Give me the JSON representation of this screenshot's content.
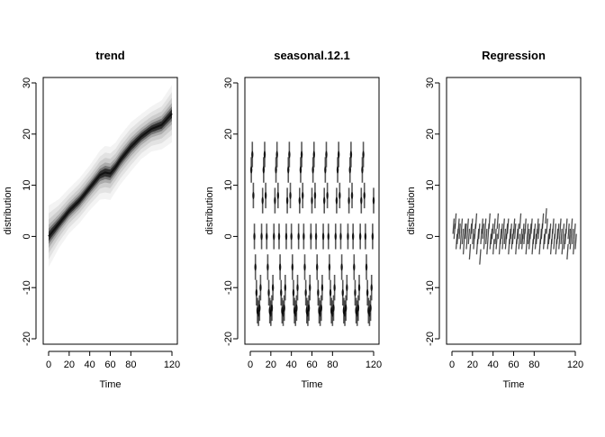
{
  "chart_data": [
    {
      "type": "area",
      "title": "trend",
      "xlabel": "Time",
      "ylabel": "distribution",
      "xlim": [
        0,
        120
      ],
      "ylim": [
        -20,
        30
      ],
      "xticks": [
        0,
        20,
        40,
        60,
        80,
        120
      ],
      "yticks": [
        -20,
        -10,
        0,
        10,
        20,
        30
      ],
      "grid": false,
      "series": [
        {
          "x": [
            0,
            10,
            20,
            30,
            40,
            50,
            55,
            60,
            65,
            70,
            80,
            90,
            100,
            110,
            120
          ],
          "center": [
            0,
            2.5,
            5,
            7,
            9.5,
            12,
            12.5,
            12.3,
            13.5,
            15,
            17.5,
            19.5,
            21,
            21.8,
            24
          ],
          "spread": [
            1.5,
            1.2,
            1.1,
            1.1,
            1.1,
            1.2,
            1.3,
            1.3,
            1.2,
            1.2,
            1.2,
            1.1,
            1.1,
            1.2,
            1.4
          ]
        }
      ]
    },
    {
      "type": "scatter",
      "title": "seasonal.12.1",
      "xlabel": "Time",
      "ylabel": "distribution",
      "xlim": [
        0,
        120
      ],
      "ylim": [
        -20,
        30
      ],
      "xticks": [
        0,
        20,
        40,
        60,
        80,
        120
      ],
      "yticks": [
        -20,
        -10,
        0,
        10,
        20,
        30
      ],
      "grid": false,
      "series": [
        {
          "period": 12,
          "cycles": 10,
          "pattern": [
            13,
            16,
            8,
            0,
            -6,
            -11,
            -14.5,
            -15,
            -14,
            -10,
            0,
            7
          ],
          "spread": 2.5
        }
      ]
    },
    {
      "type": "scatter",
      "title": "Regression",
      "xlabel": "Time",
      "ylabel": "distribution",
      "xlim": [
        0,
        120
      ],
      "ylim": [
        -20,
        30
      ],
      "xticks": [
        0,
        20,
        40,
        60,
        80,
        120
      ],
      "yticks": [
        -20,
        -10,
        0,
        10,
        20,
        30
      ],
      "grid": false,
      "series": [
        {
          "x": [
            1,
            2,
            3,
            4,
            5,
            6,
            7,
            8,
            9,
            10,
            11,
            12,
            13,
            14,
            15,
            16,
            17,
            18,
            19,
            20,
            21,
            22,
            23,
            24,
            25,
            26,
            27,
            28,
            29,
            30,
            31,
            32,
            33,
            34,
            35,
            36,
            37,
            38,
            39,
            40,
            41,
            42,
            43,
            44,
            45,
            46,
            47,
            48,
            49,
            50,
            51,
            52,
            53,
            54,
            55,
            56,
            57,
            58,
            59,
            60,
            61,
            62,
            63,
            64,
            65,
            66,
            67,
            68,
            69,
            70,
            71,
            72,
            73,
            74,
            75,
            76,
            77,
            78,
            79,
            80,
            81,
            82,
            83,
            84,
            85,
            86,
            87,
            88,
            89,
            90,
            91,
            92,
            93,
            94,
            95,
            96,
            97,
            98,
            99,
            100,
            101,
            102,
            103,
            104,
            105,
            106,
            107,
            108,
            109,
            110,
            111,
            112,
            113,
            114,
            115,
            116,
            117,
            118,
            119,
            120
          ],
          "y": [
            2,
            1,
            3,
            -1,
            0,
            2,
            1,
            -1,
            2,
            0,
            -2,
            1,
            1,
            -1,
            2,
            0,
            -3,
            1,
            2,
            0,
            -1,
            1,
            3,
            -2,
            0,
            1,
            -4,
            0,
            2,
            1,
            -1,
            2,
            0,
            -2,
            1,
            3,
            -1,
            0,
            1,
            -2,
            2,
            0,
            -1,
            3,
            1,
            -2,
            0,
            1,
            -1,
            2,
            0,
            -1,
            1,
            2,
            -2,
            0,
            1,
            -1,
            0,
            2,
            1,
            -2,
            0,
            1,
            -1,
            3,
            0,
            -1,
            1,
            0,
            2,
            -2,
            1,
            0,
            -1,
            1,
            2,
            -2,
            0,
            1,
            -1,
            0,
            2,
            1,
            -2,
            0,
            1,
            3,
            -1,
            0,
            4,
            2,
            -1,
            0,
            1,
            -2,
            0,
            2,
            -1,
            1,
            -2,
            0,
            1,
            -1,
            2,
            0,
            -2,
            1,
            -1,
            0,
            2,
            -3,
            1,
            0,
            -1,
            2,
            0,
            -2,
            1,
            -1
          ],
          "spread": 1.5
        }
      ]
    }
  ]
}
